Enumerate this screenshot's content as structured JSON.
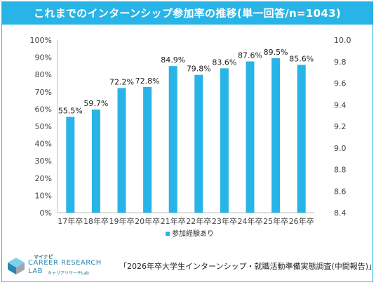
{
  "chart_data": {
    "type": "bar",
    "title": "これまでのインターンシップ参加率の推移(単一回答/n=1043)",
    "categories": [
      "17年卒",
      "18年卒",
      "19年卒",
      "20年卒",
      "21年卒",
      "22年卒",
      "23年卒",
      "24年卒",
      "25年卒",
      "26年卒"
    ],
    "series": [
      {
        "name": "参加経験あり",
        "values": [
          55.5,
          59.7,
          72.2,
          72.8,
          84.9,
          79.8,
          83.6,
          87.6,
          89.5,
          85.6
        ],
        "labels": [
          "55.5%",
          "59.7%",
          "72.2%",
          "72.8%",
          "84.9%",
          "79.8%",
          "83.6%",
          "87.6%",
          "89.5%",
          "85.6%"
        ]
      }
    ],
    "ylim": [
      0,
      100
    ],
    "yticks": [
      "0%",
      "10%",
      "20%",
      "30%",
      "40%",
      "50%",
      "60%",
      "70%",
      "80%",
      "90%",
      "100%"
    ],
    "y2lim": [
      8.4,
      10.0
    ],
    "y2ticks": [
      "8.4",
      "8.6",
      "8.8",
      "9.0",
      "9.2",
      "9.4",
      "9.6",
      "9.8",
      "10.0"
    ],
    "grid": false,
    "legend_position": "bottom-center",
    "bar_color": "#28b4e6"
  },
  "logo": {
    "small": "マイナビ",
    "line1": "CAREER RESEARCH",
    "line2": "LAB",
    "sub": "キャリアリサーチLab"
  },
  "source": "「2026年卒大学生インターンシップ・就職活動準備実態調査(中間報告)」"
}
